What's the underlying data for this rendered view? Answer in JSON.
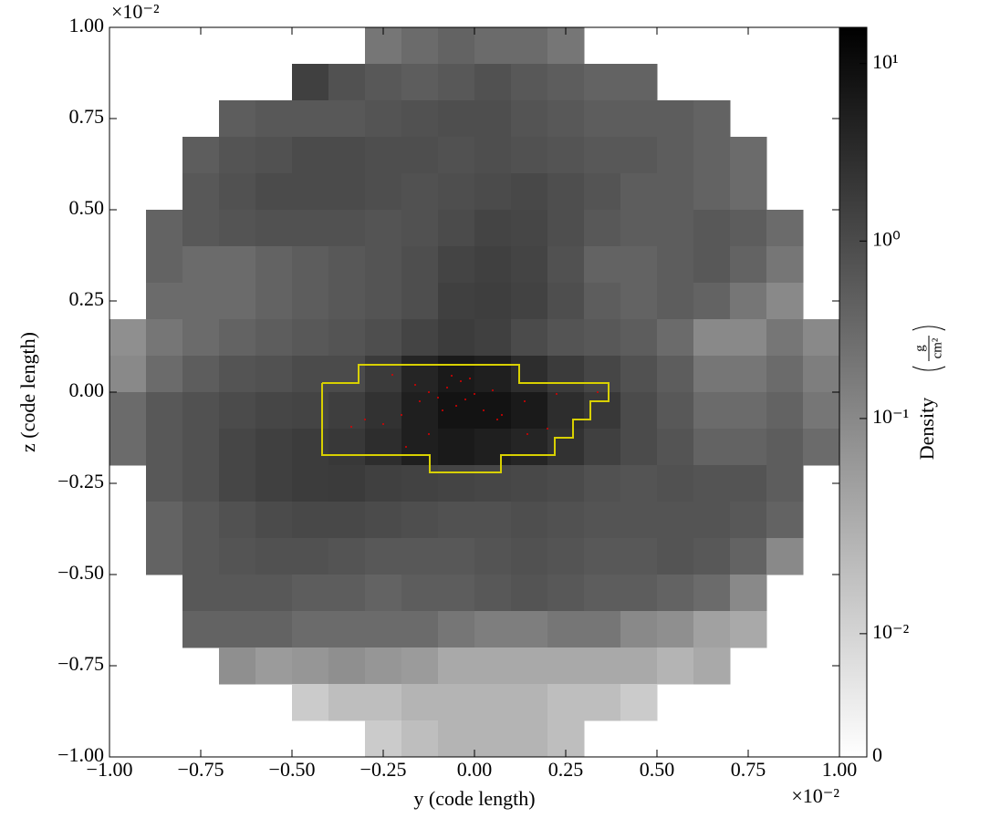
{
  "chart_data": {
    "type": "heatmap",
    "xlabel": "y  (code length)",
    "ylabel": "z  (code length)",
    "x_offset_label": "×10⁻²",
    "y_offset_label": "×10⁻²",
    "xlim": [
      -1,
      1
    ],
    "ylim": [
      -1,
      1
    ],
    "xticks": [
      {
        "value": -1,
        "label": "−1.00"
      },
      {
        "value": -0.75,
        "label": "−0.75"
      },
      {
        "value": -0.5,
        "label": "−0.50"
      },
      {
        "value": -0.25,
        "label": "−0.25"
      },
      {
        "value": 0,
        "label": "0.00"
      },
      {
        "value": 0.25,
        "label": "0.25"
      },
      {
        "value": 0.5,
        "label": "0.50"
      },
      {
        "value": 0.75,
        "label": "0.75"
      },
      {
        "value": 1,
        "label": "1.00"
      }
    ],
    "yticks": [
      {
        "value": -1,
        "label": "−1.00"
      },
      {
        "value": -0.75,
        "label": "−0.75"
      },
      {
        "value": -0.5,
        "label": "−0.50"
      },
      {
        "value": -0.25,
        "label": "−0.25"
      },
      {
        "value": 0,
        "label": "0.00"
      },
      {
        "value": 0.25,
        "label": "0.25"
      },
      {
        "value": 0.5,
        "label": "0.50"
      },
      {
        "value": 0.75,
        "label": "0.75"
      },
      {
        "value": 1,
        "label": "1.00"
      }
    ],
    "colorbar": {
      "label": "Density",
      "unit_numerator": "g",
      "unit_denominator": "cm²",
      "scale": "symlog",
      "linthresh": 0.016,
      "clim": [
        0,
        16
      ],
      "colormap": "binary",
      "ticks": [
        {
          "value": 10,
          "label": "10¹"
        },
        {
          "value": 1,
          "label": "10⁰"
        },
        {
          "value": 0.1,
          "label": "10⁻¹"
        },
        {
          "value": 0.01,
          "label": "10⁻²"
        },
        0
      ]
    },
    "z": [
      [
        null,
        null,
        null,
        null,
        null,
        null,
        null,
        0.2,
        0.3,
        0.4,
        0.3,
        0.3,
        0.2,
        null,
        null,
        null,
        null,
        null,
        null,
        null
      ],
      [
        null,
        null,
        null,
        null,
        null,
        1.5,
        0.8,
        0.6,
        0.5,
        0.6,
        0.8,
        0.6,
        0.5,
        0.4,
        0.4,
        null,
        null,
        null,
        null,
        null
      ],
      [
        null,
        null,
        null,
        0.5,
        0.6,
        0.6,
        0.6,
        0.7,
        0.8,
        0.9,
        0.9,
        0.7,
        0.6,
        0.5,
        0.5,
        0.5,
        0.4,
        null,
        null,
        null
      ],
      [
        null,
        null,
        0.5,
        0.7,
        0.8,
        1,
        1,
        0.9,
        0.9,
        0.8,
        0.9,
        0.8,
        0.7,
        0.6,
        0.6,
        0.5,
        0.4,
        0.3,
        null,
        null
      ],
      [
        null,
        null,
        0.6,
        0.8,
        1,
        1,
        1,
        0.9,
        0.8,
        0.9,
        1,
        1.1,
        0.9,
        0.7,
        0.5,
        0.5,
        0.4,
        0.3,
        null,
        null
      ],
      [
        null,
        0.4,
        0.6,
        0.7,
        0.8,
        0.8,
        0.8,
        0.7,
        0.8,
        1,
        1.3,
        1.2,
        0.9,
        0.6,
        0.5,
        0.5,
        0.6,
        0.5,
        0.3,
        null
      ],
      [
        null,
        0.4,
        0.3,
        0.3,
        0.4,
        0.5,
        0.6,
        0.7,
        0.9,
        1.3,
        1.5,
        1.3,
        0.8,
        0.4,
        0.4,
        0.5,
        0.6,
        0.4,
        0.2,
        null
      ],
      [
        null,
        0.3,
        0.3,
        0.3,
        0.4,
        0.5,
        0.6,
        0.7,
        0.9,
        1.5,
        1.6,
        1.4,
        0.9,
        0.5,
        0.4,
        0.5,
        0.4,
        0.2,
        0.1,
        null
      ],
      [
        0.08,
        0.2,
        0.3,
        0.4,
        0.5,
        0.6,
        0.7,
        0.9,
        1.3,
        1.7,
        1.5,
        1,
        0.7,
        0.6,
        0.5,
        0.3,
        0.1,
        0.1,
        0.2,
        0.1
      ],
      [
        0.1,
        0.3,
        0.5,
        0.7,
        0.8,
        1,
        1,
        1.8,
        4,
        6,
        5,
        3,
        1.8,
        1.2,
        0.8,
        0.5,
        0.2,
        0.2,
        0.3,
        0.15
      ],
      [
        0.3,
        0.6,
        0.8,
        1,
        1.2,
        1.3,
        1.6,
        2.5,
        5,
        8,
        8,
        6,
        3,
        2,
        1,
        0.6,
        0.3,
        0.3,
        0.4,
        0.2
      ],
      [
        0.3,
        0.6,
        0.8,
        1.2,
        1.5,
        1.7,
        2,
        3,
        5,
        6,
        5,
        4,
        2.5,
        1.5,
        1,
        0.7,
        0.4,
        0.4,
        0.5,
        0.3
      ],
      [
        null,
        0.6,
        0.8,
        1.2,
        1.5,
        1.7,
        1.8,
        1.5,
        1.4,
        1.3,
        1.2,
        1.1,
        1,
        0.8,
        0.7,
        0.8,
        0.7,
        0.7,
        0.5,
        null
      ],
      [
        null,
        0.4,
        0.6,
        0.8,
        1,
        1.1,
        1.1,
        1,
        0.9,
        0.8,
        0.8,
        0.9,
        0.8,
        0.7,
        0.7,
        0.7,
        0.7,
        0.6,
        0.4,
        null
      ],
      [
        null,
        0.4,
        0.6,
        0.7,
        0.8,
        0.8,
        0.7,
        0.6,
        0.6,
        0.6,
        0.7,
        0.8,
        0.7,
        0.6,
        0.6,
        0.7,
        0.6,
        0.4,
        0.1,
        null
      ],
      [
        null,
        null,
        0.6,
        0.6,
        0.6,
        0.5,
        0.5,
        0.4,
        0.5,
        0.5,
        0.6,
        0.7,
        0.6,
        0.5,
        0.5,
        0.4,
        0.3,
        0.1,
        null,
        null
      ],
      [
        null,
        null,
        0.4,
        0.4,
        0.4,
        0.3,
        0.3,
        0.3,
        0.3,
        0.2,
        0.15,
        0.15,
        0.2,
        0.2,
        0.1,
        0.08,
        0.04,
        0.03,
        null,
        null
      ],
      [
        null,
        null,
        null,
        0.08,
        0.05,
        0.06,
        0.08,
        0.06,
        0.05,
        0.03,
        0.03,
        0.03,
        0.03,
        0.03,
        0.03,
        0.02,
        0.03,
        null,
        null,
        null
      ],
      [
        null,
        null,
        null,
        null,
        null,
        0.012,
        0.015,
        0.015,
        0.02,
        0.02,
        0.02,
        0.02,
        0.015,
        0.015,
        0.012,
        null,
        null,
        null,
        null,
        null
      ],
      [
        null,
        null,
        null,
        null,
        null,
        null,
        null,
        0.012,
        0.015,
        0.02,
        0.02,
        0.02,
        0.015,
        null,
        null,
        null,
        null,
        null,
        null,
        null
      ]
    ]
  }
}
